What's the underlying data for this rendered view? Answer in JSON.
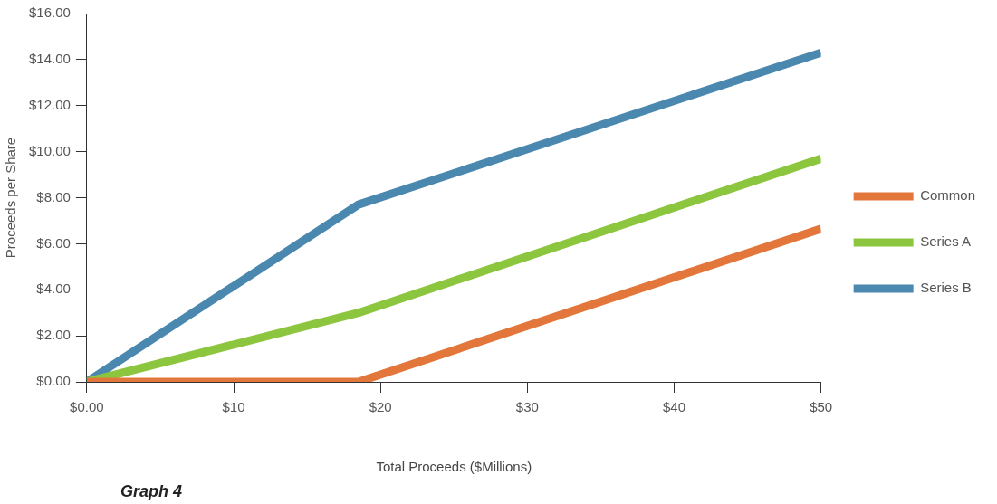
{
  "chart_data": {
    "type": "line",
    "title": "Graph 4",
    "xlabel": "Total Proceeds ($Millions)",
    "ylabel": "Proceeds per Share",
    "x": [
      0,
      18.5,
      50
    ],
    "series": [
      {
        "name": "Common",
        "color": "#e3763a",
        "values": [
          0,
          0,
          6.65
        ]
      },
      {
        "name": "Series A",
        "color": "#8cc63f",
        "values": [
          0,
          3.0,
          9.7
        ]
      },
      {
        "name": "Series B",
        "color": "#4a88b0",
        "values": [
          0,
          7.7,
          14.3
        ]
      }
    ],
    "xlim": [
      0,
      50
    ],
    "xticks": [
      {
        "value": 0,
        "label": "$0.00"
      },
      {
        "value": 10,
        "label": "$10"
      },
      {
        "value": 20,
        "label": "$20"
      },
      {
        "value": 30,
        "label": "$30"
      },
      {
        "value": 40,
        "label": "$40"
      },
      {
        "value": 50,
        "label": "$50"
      }
    ],
    "ylim": [
      0,
      16
    ],
    "yticks": [
      {
        "value": 0,
        "label": "$0.00"
      },
      {
        "value": 2,
        "label": "$2.00"
      },
      {
        "value": 4,
        "label": "$4.00"
      },
      {
        "value": 6,
        "label": "$6.00"
      },
      {
        "value": 8,
        "label": "$8.00"
      },
      {
        "value": 10,
        "label": "$10.00"
      },
      {
        "value": 12,
        "label": "$12.00"
      },
      {
        "value": 14,
        "label": "$14.00"
      },
      {
        "value": 16,
        "label": "$16.00"
      }
    ],
    "grid": false,
    "legend": "right",
    "marker": "none",
    "line_style": "solid"
  }
}
